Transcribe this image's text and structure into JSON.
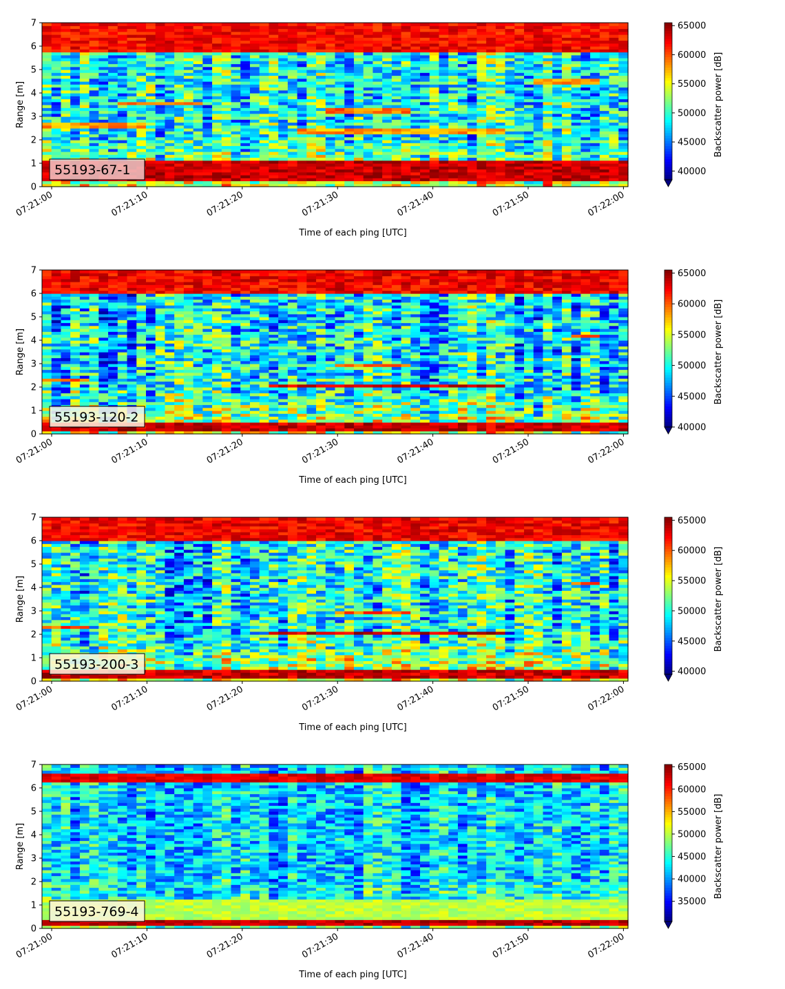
{
  "chart_data": [
    {
      "type": "heatmap",
      "label": "55193-67-1",
      "xlabel": "Time of each ping [UTC]",
      "ylabel": "Range [m]",
      "x_ticks": [
        "07:21:00",
        "07:21:10",
        "07:21:20",
        "07:21:30",
        "07:21:40",
        "07:21:50",
        "07:22:00"
      ],
      "y_ticks": [
        "0",
        "1",
        "2",
        "3",
        "4",
        "5",
        "6",
        "7"
      ],
      "ylim": [
        0,
        7
      ],
      "colorbar_label": "Backscatter power [dB]",
      "colorbar_ticks": [
        "40000",
        "45000",
        "50000",
        "55000",
        "60000",
        "65000"
      ],
      "colorbar_range": [
        38500,
        65500
      ],
      "colormap": "jet",
      "bands": [
        {
          "range": [
            5.7,
            7.0
          ],
          "value": 64000
        },
        {
          "range": [
            3.5,
            3.65
          ],
          "x": [
            7,
            16
          ],
          "value": 61000
        },
        {
          "range": [
            3.15,
            3.4
          ],
          "x": [
            29,
            37
          ],
          "value": 61000
        },
        {
          "range": [
            2.2,
            2.45
          ],
          "x": [
            26,
            47
          ],
          "value": 60000
        },
        {
          "range": [
            2.5,
            2.75
          ],
          "x": [
            0,
            10
          ],
          "value": 60000
        },
        {
          "range": [
            4.35,
            4.65
          ],
          "x": [
            50,
            57
          ],
          "value": 60000
        },
        {
          "range": [
            0.2,
            1.1
          ],
          "value": 65500
        }
      ]
    },
    {
      "type": "heatmap",
      "label": "55193-120-2",
      "xlabel": "Time of each ping [UTC]",
      "ylabel": "Range [m]",
      "x_ticks": [
        "07:21:00",
        "07:21:10",
        "07:21:20",
        "07:21:30",
        "07:21:40",
        "07:21:50",
        "07:22:00"
      ],
      "y_ticks": [
        "0",
        "1",
        "2",
        "3",
        "4",
        "5",
        "6",
        "7"
      ],
      "ylim": [
        0,
        7
      ],
      "colorbar_label": "Backscatter power [dB]",
      "colorbar_ticks": [
        "40000",
        "45000",
        "50000",
        "55000",
        "60000",
        "65000"
      ],
      "colorbar_range": [
        40000,
        65500
      ],
      "colormap": "jet",
      "bands": [
        {
          "range": [
            6.0,
            7.0
          ],
          "value": 64500
        },
        {
          "range": [
            3.2,
            3.3
          ],
          "x": [
            7,
            14
          ],
          "value": 62000
        },
        {
          "range": [
            2.9,
            3.05
          ],
          "x": [
            30,
            37
          ],
          "value": 62000
        },
        {
          "range": [
            2.0,
            2.15
          ],
          "x": [
            23,
            47
          ],
          "value": 65500
        },
        {
          "range": [
            2.25,
            2.4
          ],
          "x": [
            0,
            4
          ],
          "value": 62000
        },
        {
          "range": [
            4.1,
            4.2
          ],
          "x": [
            54,
            57
          ],
          "value": 62000
        },
        {
          "range": [
            0.1,
            0.55
          ],
          "value": 65500
        }
      ]
    },
    {
      "type": "heatmap",
      "label": "55193-200-3",
      "xlabel": "Time of each ping [UTC]",
      "ylabel": "Range [m]",
      "x_ticks": [
        "07:21:00",
        "07:21:10",
        "07:21:20",
        "07:21:30",
        "07:21:40",
        "07:21:50",
        "07:22:00"
      ],
      "y_ticks": [
        "0",
        "1",
        "2",
        "3",
        "4",
        "5",
        "6",
        "7"
      ],
      "ylim": [
        0,
        7
      ],
      "colorbar_label": "Backscatter power [dB]",
      "colorbar_ticks": [
        "40000",
        "45000",
        "50000",
        "55000",
        "60000",
        "65000"
      ],
      "colorbar_range": [
        39500,
        65500
      ],
      "colormap": "jet",
      "bands": [
        {
          "range": [
            6.0,
            7.0
          ],
          "value": 64500
        },
        {
          "range": [
            3.2,
            3.3
          ],
          "x": [
            7,
            14
          ],
          "value": 62000
        },
        {
          "range": [
            2.9,
            3.05
          ],
          "x": [
            30,
            37
          ],
          "value": 62000
        },
        {
          "range": [
            2.0,
            2.15
          ],
          "x": [
            23,
            47
          ],
          "value": 65500
        },
        {
          "range": [
            2.25,
            2.4
          ],
          "x": [
            0,
            4
          ],
          "value": 62000
        },
        {
          "range": [
            4.1,
            4.2
          ],
          "x": [
            54,
            57
          ],
          "value": 62000
        },
        {
          "range": [
            0.1,
            0.5
          ],
          "value": 65500
        }
      ]
    },
    {
      "type": "heatmap",
      "label": "55193-769-4",
      "xlabel": "Time of each ping [UTC]",
      "ylabel": "Range [m]",
      "x_ticks": [
        "07:21:00",
        "07:21:10",
        "07:21:20",
        "07:21:30",
        "07:21:40",
        "07:21:50",
        "07:22:00"
      ],
      "y_ticks": [
        "0",
        "1",
        "2",
        "3",
        "4",
        "5",
        "6",
        "7"
      ],
      "ylim": [
        0,
        7
      ],
      "colorbar_label": "Backscatter power [dB]",
      "colorbar_ticks": [
        "35000",
        "40000",
        "45000",
        "50000",
        "55000",
        "60000",
        "65000"
      ],
      "colorbar_range": [
        30500,
        65500
      ],
      "colormap": "jet",
      "bands": [
        {
          "range": [
            6.2,
            6.6
          ],
          "value": 64000
        },
        {
          "range": [
            0.1,
            0.35
          ],
          "value": 65500
        },
        {
          "range": [
            0.35,
            1.3
          ],
          "value": 52000
        }
      ]
    }
  ]
}
